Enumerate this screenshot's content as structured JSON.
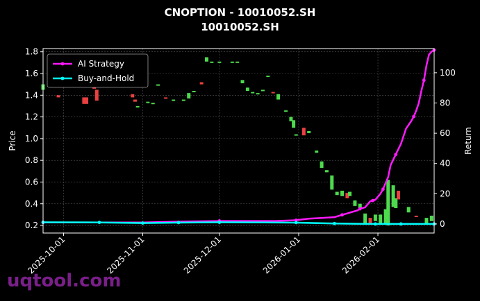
{
  "chart_data": {
    "type": "candlestick+line",
    "title": "CNOPTION - 10010052.SH",
    "subtitle": "10010052.SH",
    "ylabel": "Price",
    "y2label": "Return",
    "ylim": [
      0.13,
      1.83
    ],
    "y2lim": [
      -6,
      116
    ],
    "yticks": [
      0.2,
      0.4,
      0.6,
      0.8,
      1.0,
      1.2,
      1.4,
      1.6,
      1.8
    ],
    "y2ticks": [
      0,
      20,
      40,
      60,
      80,
      100
    ],
    "xlim": [
      "2025-09-23",
      "2026-02-23"
    ],
    "xticks": [
      "2025-10-01",
      "2025-11-01",
      "2025-12-01",
      "2026-01-01",
      "2026-02-01"
    ],
    "grid": true,
    "legend_position": "top-left",
    "colors": {
      "up": "#4ddb4d",
      "down": "#e84040",
      "ai": "#ff1aff",
      "bh": "#00ffff"
    },
    "series": [
      {
        "name": "AI Strategy",
        "x": [
          "2025-09-23",
          "2025-10-15",
          "2025-11-01",
          "2025-11-15",
          "2025-12-01",
          "2025-12-15",
          "2025-12-18",
          "2025-12-23",
          "2025-12-31",
          "2026-01-05",
          "2026-01-10",
          "2026-01-15",
          "2026-01-18",
          "2026-01-20",
          "2026-01-22",
          "2026-01-24",
          "2026-01-25",
          "2026-01-27",
          "2026-01-28",
          "2026-01-29",
          "2026-01-30",
          "2026-01-31",
          "2026-02-01",
          "2026-02-02",
          "2026-02-03",
          "2026-02-04",
          "2026-02-05",
          "2026-02-06",
          "2026-02-08",
          "2026-02-10",
          "2026-02-12",
          "2026-02-14",
          "2026-02-15",
          "2026-02-16",
          "2026-02-17",
          "2026-02-18",
          "2026-02-19",
          "2026-02-20",
          "2026-02-21",
          "2026-02-22",
          "2026-02-23"
        ],
        "values": [
          1,
          1,
          1,
          1.5,
          2,
          2,
          2,
          2,
          2.5,
          3.5,
          4,
          4.5,
          6,
          7,
          8,
          9,
          10,
          11,
          13,
          15,
          15.5,
          16,
          18,
          20,
          23,
          27,
          31,
          39,
          46,
          53,
          63,
          68,
          71,
          75,
          80,
          88,
          95,
          105,
          112,
          114,
          115
        ]
      },
      {
        "name": "Buy-and-Hold",
        "x": [
          "2025-09-23",
          "2025-10-15",
          "2025-11-01",
          "2025-11-15",
          "2025-12-01",
          "2025-12-31",
          "2026-01-15",
          "2026-01-31",
          "2026-02-10",
          "2026-02-23"
        ],
        "values": [
          1.1,
          1,
          0.6,
          0.9,
          1.1,
          0.9,
          0.3,
          0,
          0,
          0
        ]
      }
    ],
    "candles": [
      {
        "date": "2025-09-23",
        "open": 1.45,
        "close": 1.5
      },
      {
        "date": "2025-09-26",
        "open": 1.52,
        "close": 1.56
      },
      {
        "date": "2025-09-29",
        "open": 1.4,
        "close": 1.38
      },
      {
        "date": "2025-10-09",
        "open": 1.38,
        "close": 1.32
      },
      {
        "date": "2025-10-10",
        "open": 1.38,
        "close": 1.32
      },
      {
        "date": "2025-10-13",
        "open": 1.48,
        "close": 1.46
      },
      {
        "date": "2025-10-14",
        "open": 1.45,
        "close": 1.35
      },
      {
        "date": "2025-10-28",
        "open": 1.41,
        "close": 1.38
      },
      {
        "date": "2025-10-29",
        "open": 1.36,
        "close": 1.34
      },
      {
        "date": "2025-10-30",
        "open": 1.3,
        "close": 1.3
      },
      {
        "date": "2025-11-03",
        "open": 1.34,
        "close": 1.34
      },
      {
        "date": "2025-11-05",
        "open": 1.33,
        "close": 1.33
      },
      {
        "date": "2025-11-07",
        "open": 1.5,
        "close": 1.5
      },
      {
        "date": "2025-11-10",
        "open": 1.38,
        "close": 1.37
      },
      {
        "date": "2025-11-13",
        "open": 1.36,
        "close": 1.36
      },
      {
        "date": "2025-11-17",
        "open": 1.36,
        "close": 1.36
      },
      {
        "date": "2025-11-19",
        "open": 1.37,
        "close": 1.42
      },
      {
        "date": "2025-11-21",
        "open": 1.44,
        "close": 1.44
      },
      {
        "date": "2025-11-24",
        "open": 1.52,
        "close": 1.5
      },
      {
        "date": "2025-11-26",
        "open": 1.71,
        "close": 1.75
      },
      {
        "date": "2025-11-28",
        "open": 1.71,
        "close": 1.71
      },
      {
        "date": "2025-12-01",
        "open": 1.71,
        "close": 1.71
      },
      {
        "date": "2025-12-06",
        "open": 1.71,
        "close": 1.71
      },
      {
        "date": "2025-12-08",
        "open": 1.71,
        "close": 1.71
      },
      {
        "date": "2025-12-10",
        "open": 1.51,
        "close": 1.54
      },
      {
        "date": "2025-12-12",
        "open": 1.44,
        "close": 1.47
      },
      {
        "date": "2025-12-14",
        "open": 1.43,
        "close": 1.43
      },
      {
        "date": "2025-12-16",
        "open": 1.42,
        "close": 1.42
      },
      {
        "date": "2025-12-18",
        "open": 1.45,
        "close": 1.45
      },
      {
        "date": "2025-12-20",
        "open": 1.57,
        "close": 1.58
      },
      {
        "date": "2025-12-22",
        "open": 1.43,
        "close": 1.42
      },
      {
        "date": "2025-12-24",
        "open": 1.36,
        "close": 1.41
      },
      {
        "date": "2025-12-27",
        "open": 1.26,
        "close": 1.26
      },
      {
        "date": "2025-12-29",
        "open": 1.16,
        "close": 1.2
      },
      {
        "date": "2025-12-30",
        "open": 1.1,
        "close": 1.17
      },
      {
        "date": "2025-12-31",
        "open": 1.04,
        "close": 1.04
      },
      {
        "date": "2026-01-03",
        "open": 1.1,
        "close": 1.03
      },
      {
        "date": "2026-01-05",
        "open": 1.05,
        "close": 1.07
      },
      {
        "date": "2026-01-08",
        "open": 0.87,
        "close": 0.89
      },
      {
        "date": "2026-01-10",
        "open": 0.73,
        "close": 0.79
      },
      {
        "date": "2026-01-12",
        "open": 0.69,
        "close": 0.71
      },
      {
        "date": "2026-01-14",
        "open": 0.53,
        "close": 0.66
      },
      {
        "date": "2026-01-16",
        "open": 0.48,
        "close": 0.51
      },
      {
        "date": "2026-01-18",
        "open": 0.47,
        "close": 0.52
      },
      {
        "date": "2026-01-20",
        "open": 0.5,
        "close": 0.45
      },
      {
        "date": "2026-01-21",
        "open": 0.47,
        "close": 0.51
      },
      {
        "date": "2026-01-23",
        "open": 0.38,
        "close": 0.43
      },
      {
        "date": "2026-01-25",
        "open": 0.36,
        "close": 0.4
      },
      {
        "date": "2026-01-27",
        "open": 0.21,
        "close": 0.31
      },
      {
        "date": "2026-01-29",
        "open": 0.27,
        "close": 0.22
      },
      {
        "date": "2026-01-31",
        "open": 0.24,
        "close": 0.3
      },
      {
        "date": "2026-02-02",
        "open": 0.22,
        "close": 0.3
      },
      {
        "date": "2026-02-04",
        "open": 0.22,
        "close": 0.35
      },
      {
        "date": "2026-02-05",
        "open": 0.2,
        "close": 0.62
      },
      {
        "date": "2026-02-07",
        "open": 0.37,
        "close": 0.57
      },
      {
        "date": "2026-02-08",
        "open": 0.36,
        "close": 0.45
      },
      {
        "date": "2026-02-09",
        "open": 0.52,
        "close": 0.44
      },
      {
        "date": "2026-02-13",
        "open": 0.32,
        "close": 0.37
      },
      {
        "date": "2026-02-16",
        "open": 0.29,
        "close": 0.28
      },
      {
        "date": "2026-02-20",
        "open": 0.22,
        "close": 0.27
      },
      {
        "date": "2026-02-22",
        "open": 0.24,
        "close": 0.29
      }
    ]
  },
  "watermark": "uqtool.com"
}
